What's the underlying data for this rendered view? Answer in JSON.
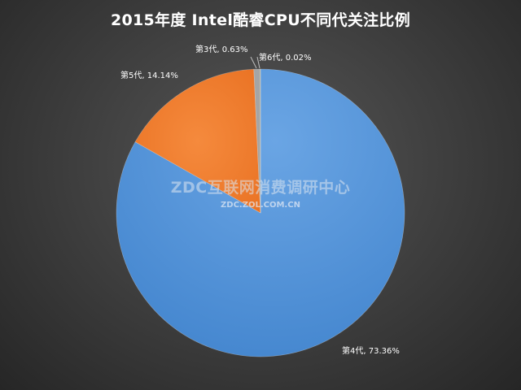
{
  "chart_data": {
    "type": "pie",
    "title": "2015年度 Intel酷睿CPU不同代关注比例",
    "categories": [
      "第4代",
      "第5代",
      "第3代",
      "第6代"
    ],
    "values": [
      73.36,
      14.14,
      0.63,
      0.02
    ],
    "data_labels": [
      "第4代, 73.36%",
      "第5代, 14.14%",
      "第3代, 0.63%",
      "第6代, 0.02%"
    ],
    "colors": [
      "#4f8ed1",
      "#f07b2c",
      "#a5a5a5",
      "#f5c242"
    ],
    "legend": "none"
  },
  "watermark": {
    "main": "ZDC互联网消费调研中心",
    "sub": "ZDC.ZOL.COM.CN"
  }
}
